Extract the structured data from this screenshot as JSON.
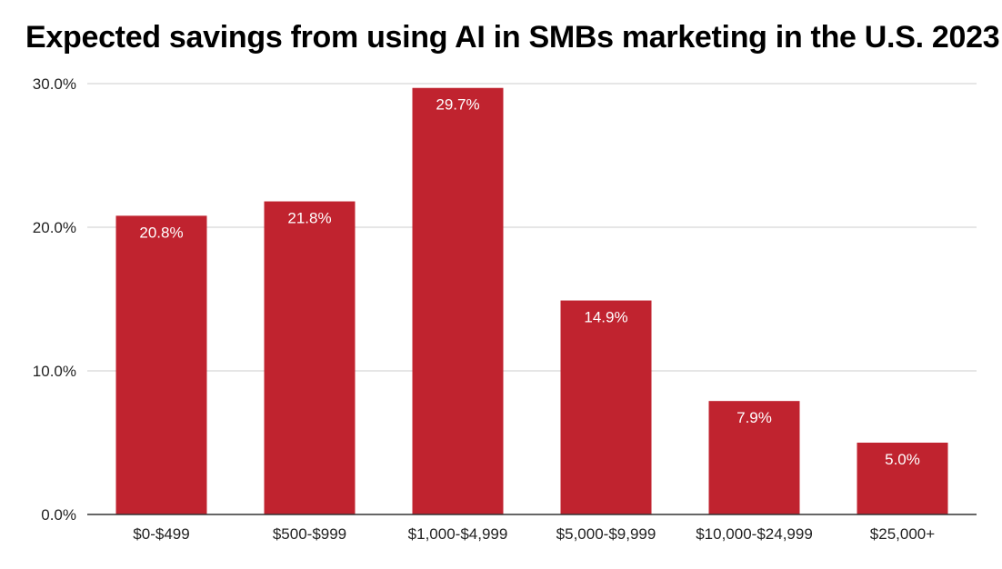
{
  "chart_data": {
    "type": "bar",
    "title": "Expected savings from using AI in SMBs marketing in the U.S. 2023",
    "categories": [
      "$0-$499",
      "$500-$999",
      "$1,000-$4,999",
      "$5,000-$9,999",
      "$10,000-$24,999",
      "$25,000+"
    ],
    "values": [
      20.8,
      21.8,
      29.7,
      14.9,
      7.9,
      5.0
    ],
    "data_labels": [
      "20.8%",
      "21.8%",
      "29.7%",
      "14.9%",
      "7.9%",
      "5.0%"
    ],
    "xlabel": "",
    "ylabel": "",
    "ylim": [
      0,
      30
    ],
    "yticks": [
      0,
      10,
      20,
      30
    ],
    "ytick_labels": [
      "0.0%",
      "10.0%",
      "20.0%",
      "30.0%"
    ],
    "grid": true,
    "bar_color": "#c0232f",
    "label_color": "#ffffff"
  }
}
